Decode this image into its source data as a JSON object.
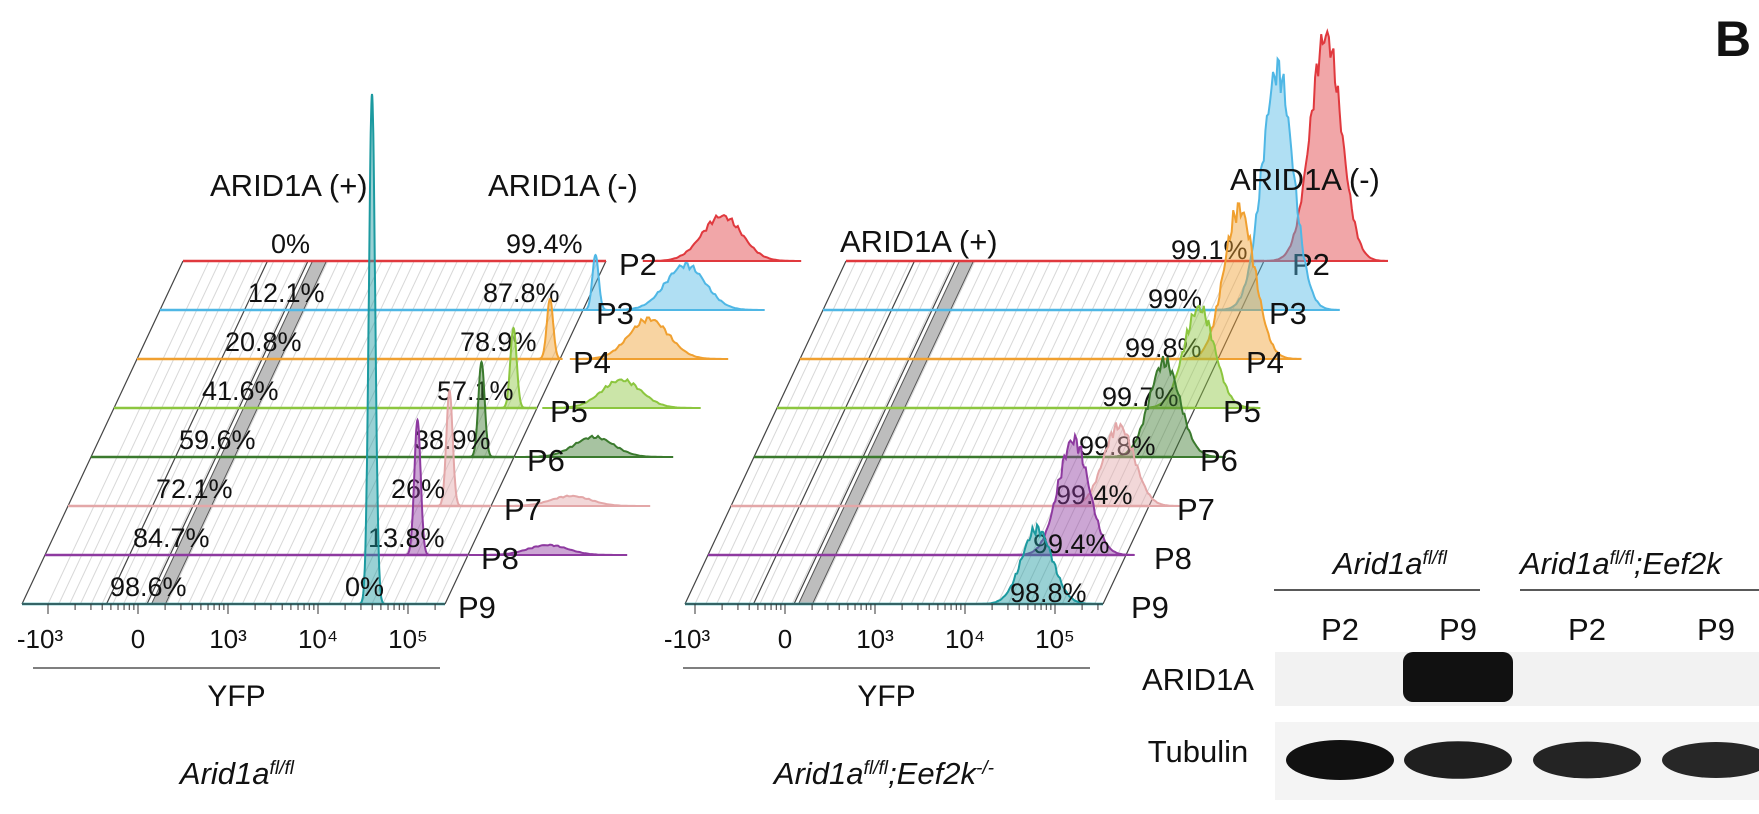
{
  "panel_letter": "B",
  "chart_data": [
    {
      "type": "histogram",
      "panel_label": "Arid1afl/fl",
      "genotype": {
        "base": "Arid1a",
        "sup": "fl/fl",
        "suffix": "",
        "suffix_sup": ""
      },
      "xlabel": "YFP",
      "x_ticks": [
        "-10³",
        "0",
        "10³",
        "10⁴",
        "10⁵"
      ],
      "gate_labels": {
        "positive": "ARID1A (+)",
        "negative": "ARID1A (-)"
      },
      "series": [
        {
          "name": "P2",
          "color": "#e0393e",
          "pct_pos": "0%",
          "pct_neg": "99.4%",
          "peak_pos": null,
          "peak_neg": 4.7
        },
        {
          "name": "P3",
          "color": "#4fb7e5",
          "pct_pos": "12.1%",
          "pct_neg": "87.8%",
          "peak_pos": 3.55,
          "peak_neg": 4.55
        },
        {
          "name": "P4",
          "color": "#f0a030",
          "pct_pos": "20.8%",
          "pct_neg": "78.9%",
          "peak_pos": 3.3,
          "peak_neg": 4.4
        },
        {
          "name": "P5",
          "color": "#8cc63f",
          "pct_pos": "41.6%",
          "pct_neg": "57.1%",
          "peak_pos": 3.15,
          "peak_neg": 4.35
        },
        {
          "name": "P6",
          "color": "#3b7a2e",
          "pct_pos": "59.6%",
          "pct_neg": "38.9%",
          "peak_pos": 3.05,
          "peak_neg": 4.3
        },
        {
          "name": "P7",
          "color": "#e3a7a8",
          "pct_pos": "72.1%",
          "pct_neg": "26%",
          "peak_pos": 2.95,
          "peak_neg": 4.3
        },
        {
          "name": "P8",
          "color": "#8e3aa0",
          "pct_pos": "84.7%",
          "pct_neg": "13.8%",
          "peak_pos": 2.85,
          "peak_neg": 4.3
        },
        {
          "name": "P9",
          "color": "#1c9aa0",
          "pct_pos": "98.6%",
          "pct_neg": "0%",
          "peak_pos": 2.6,
          "peak_neg": null
        }
      ]
    },
    {
      "type": "histogram",
      "panel_label": "Arid1afl/fl;Eef2k-/-",
      "genotype": {
        "base": "Arid1a",
        "sup": "fl/fl",
        "suffix": ";Eef2k",
        "suffix_sup": "-/-"
      },
      "xlabel": "YFP",
      "x_ticks": [
        "-10³",
        "0",
        "10³",
        "10⁴",
        "10⁵"
      ],
      "gate_labels": {
        "positive": "ARID1A (+)",
        "negative": "ARID1A (-)"
      },
      "series": [
        {
          "name": "P2",
          "color": "#e0393e",
          "pct_neg": "99.1%"
        },
        {
          "name": "P3",
          "color": "#4fb7e5",
          "pct_neg": "99%"
        },
        {
          "name": "P4",
          "color": "#f0a030",
          "pct_neg": "99.8%"
        },
        {
          "name": "P5",
          "color": "#8cc63f",
          "pct_neg": "99.7%"
        },
        {
          "name": "P6",
          "color": "#3b7a2e",
          "pct_neg": "99.8%"
        },
        {
          "name": "P7",
          "color": "#e3a7a8",
          "pct_neg": "99.4%"
        },
        {
          "name": "P8",
          "color": "#8e3aa0",
          "pct_neg": "99.4%"
        },
        {
          "name": "P9",
          "color": "#1c9aa0",
          "pct_neg": "98.8%"
        }
      ]
    }
  ],
  "western_blot": {
    "groups": [
      {
        "base": "Arid1a",
        "sup": "fl/fl",
        "suffix": "",
        "suffix_sup": ""
      },
      {
        "base": "Arid1a",
        "sup": "fl/fl",
        "suffix": ";Eef2k",
        "suffix_sup": ""
      }
    ],
    "lanes": [
      "P2",
      "P9",
      "P2",
      "P9"
    ],
    "proteins": [
      "ARID1A",
      "Tubulin"
    ],
    "arid1a_band_intensity": [
      0,
      1,
      0,
      0
    ],
    "tubulin_band_intensity": [
      1,
      0.85,
      0.8,
      0.75
    ]
  }
}
